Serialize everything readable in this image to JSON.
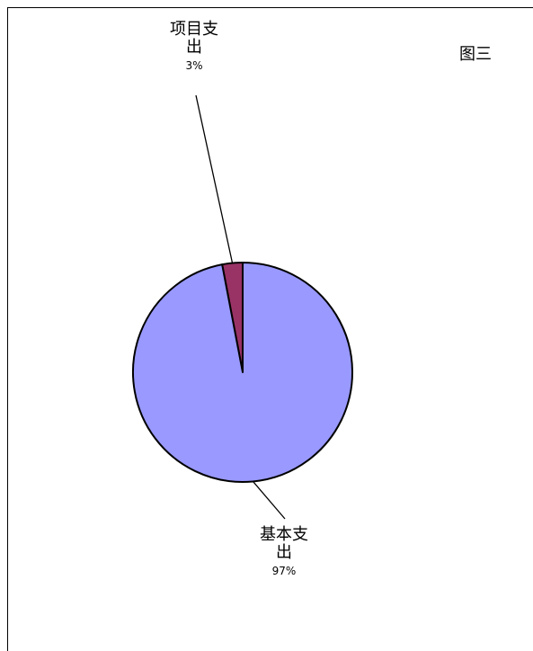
{
  "chart_data": {
    "type": "pie",
    "title": "图三",
    "start_angle_degrees": 0,
    "direction": "counterclockwise",
    "slices": [
      {
        "label_lines": [
          "项目支",
          "出"
        ],
        "label": "项目支出",
        "value": 3,
        "percent_label": "3%",
        "color": "#993366"
      },
      {
        "label_lines": [
          "基本支",
          "出"
        ],
        "label": "基本支出",
        "value": 97,
        "percent_label": "97%",
        "color": "#9999ff"
      }
    ],
    "legend": "none"
  }
}
